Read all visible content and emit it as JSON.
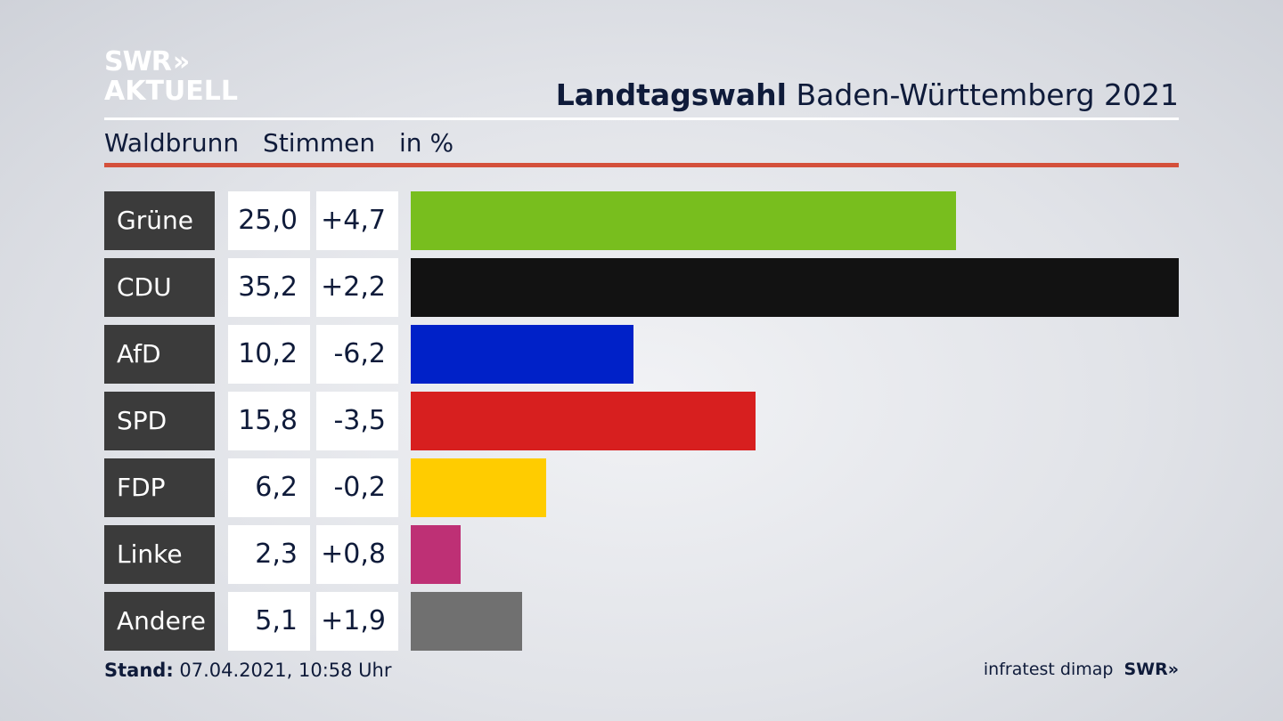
{
  "logo": {
    "line1": "SWR",
    "chevrons": "»",
    "line2": "AKTUELL"
  },
  "header": {
    "title_bold": "Landtagswahl",
    "title_rest": " Baden-Württemberg 2021"
  },
  "subheader": {
    "place": "Waldbrunn",
    "measure": "Stimmen",
    "unit": "in %"
  },
  "footer": {
    "stand_label": "Stand:",
    "stand_value": " 07.04.2021, 10:58 Uhr",
    "source": "infratest dimap",
    "source_logo": "SWR»"
  },
  "chart_data": {
    "type": "bar",
    "orientation": "horizontal",
    "categories": [
      "Grüne",
      "CDU",
      "AfD",
      "SPD",
      "FDP",
      "Linke",
      "Andere"
    ],
    "values": [
      25.0,
      35.2,
      10.2,
      15.8,
      6.2,
      2.3,
      5.1
    ],
    "value_labels": [
      "25,0",
      "35,2",
      "10,2",
      "15,8",
      "6,2",
      "2,3",
      "5,1"
    ],
    "change_labels": [
      "+4,7",
      "+2,2",
      "-6,2",
      "-3,5",
      "-0,2",
      "+0,8",
      "+1,9"
    ],
    "changes": [
      4.7,
      2.2,
      -6.2,
      -3.5,
      -0.2,
      0.8,
      1.9
    ],
    "colors": [
      "#78be1e",
      "#121212",
      "#0021c8",
      "#d71f1f",
      "#ffcc00",
      "#be3075",
      "#707070"
    ],
    "xlim": [
      0,
      35.2
    ]
  }
}
